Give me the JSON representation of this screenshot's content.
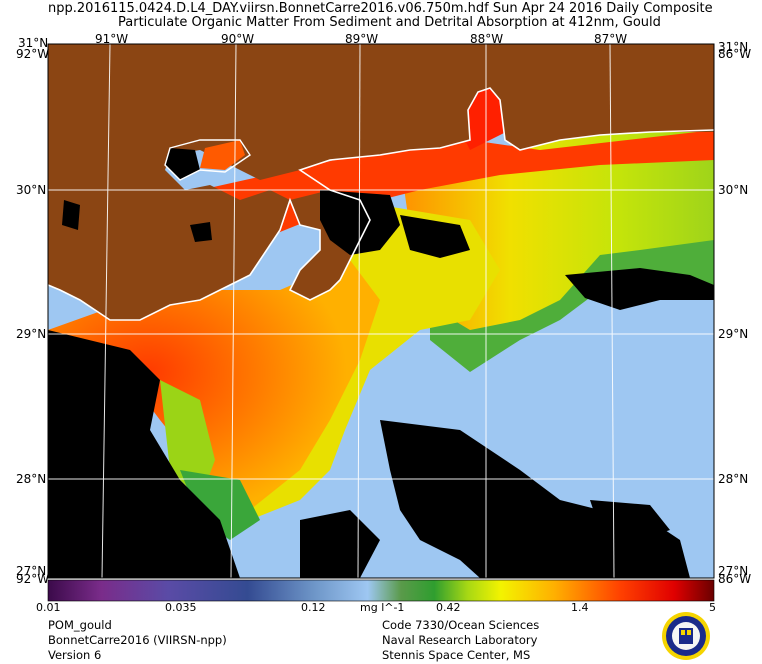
{
  "title": {
    "line1": "npp.2016115.0424.D.L4_DAY.viirsn.BonnetCarre2016.v06.750m.hdf      Sun Apr 24 2016 Daily Composite",
    "line2": "Particulate Organic Matter From Sediment and Detrital Absorption at 412nm, Gould"
  },
  "axes": {
    "lon_top": [
      "91°W",
      "90°W",
      "89°W",
      "88°W",
      "87°W"
    ],
    "corner_top_left": "31°N",
    "corner_top_right": "31°N",
    "corner_top_left2": "92°W",
    "corner_top_right2": "86°W",
    "lat_left": [
      "30°N",
      "29°N",
      "28°N"
    ],
    "lat_right": [
      "30°N",
      "29°N",
      "28°N"
    ],
    "corner_bottom_left": "92°W",
    "corner_bottom_right": "86°W",
    "corner_bottom_left2": "27°N",
    "corner_bottom_right2": "27°N"
  },
  "colorbar": {
    "ticks": [
      "0.01",
      "0.035",
      "0.12",
      "0.42",
      "1.4",
      "5"
    ],
    "unit": "mg l^-1"
  },
  "footer": {
    "left": [
      "POM_gould",
      "BonnetCarre2016 (VIIRSN-npp)",
      "Version 6"
    ],
    "right": [
      "Code 7330/Ocean Sciences",
      "Naval Research Laboratory",
      "Stennis Space Center, MS"
    ]
  },
  "colors": {
    "land": "#8b4513",
    "ocean_clear": "#9ec7f2",
    "no_data": "#000000",
    "high": "#ff2a00",
    "mid": "#ff9d00",
    "low": "#c9e400",
    "green": "#3aa63a"
  },
  "logo": "naval-research-laboratory-seal"
}
